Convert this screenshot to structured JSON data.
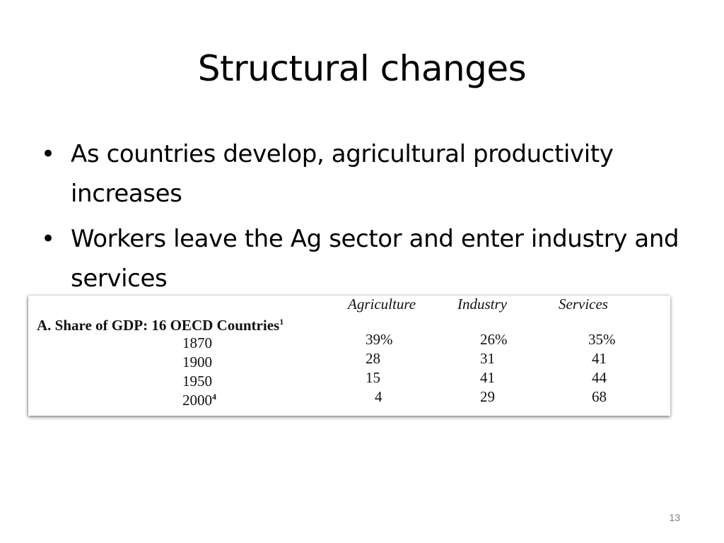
{
  "slide": {
    "title": "Structural changes",
    "bullets": [
      "As countries develop, agricultural productivity increases",
      "Workers leave the Ag sector and enter industry and services"
    ],
    "page_number": "13"
  },
  "table": {
    "columns": [
      "Agriculture",
      "Industry",
      "Services"
    ],
    "panel_label": "A.  Share of GDP: 16 OECD Countries",
    "panel_label_note": "1",
    "rows": [
      {
        "year": "1870",
        "note": "",
        "values": [
          "39%",
          "26%",
          "35%"
        ]
      },
      {
        "year": "1900",
        "note": "",
        "values": [
          "28",
          "31",
          "41"
        ]
      },
      {
        "year": "1950",
        "note": "",
        "values": [
          "15",
          "41",
          "44"
        ]
      },
      {
        "year": "2000",
        "note": "4",
        "values": [
          "4",
          "29",
          "68"
        ]
      }
    ]
  }
}
